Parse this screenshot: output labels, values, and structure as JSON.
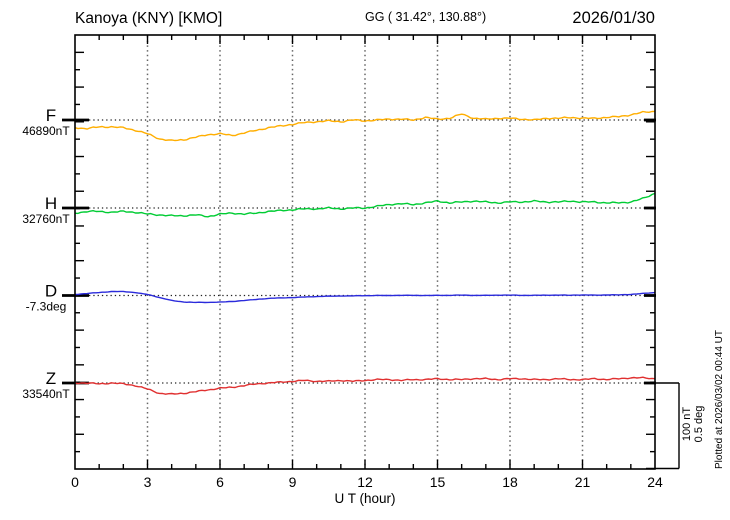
{
  "header": {
    "station_title": "Kanoya (KNY)  [KMO]",
    "coordinates": "GG ( 31.42°, 130.88°)",
    "date": "2026/01/30"
  },
  "x_axis": {
    "ticks": [
      "0",
      "3",
      "6",
      "9",
      "12",
      "15",
      "18",
      "21",
      "24"
    ],
    "label": "U T (hour)"
  },
  "components": [
    {
      "label": "F",
      "value_label": "46890nT",
      "color": "#FFAE00"
    },
    {
      "label": "H",
      "value_label": "32760nT",
      "color": "#00CC33"
    },
    {
      "label": "D",
      "value_label": "-7.3deg",
      "color": "#2B2BDB"
    },
    {
      "label": "Z",
      "value_label": "33540nT",
      "color": "#E03030"
    }
  ],
  "scale_bar": {
    "line1": "100 nT",
    "line2": "0.5 deg"
  },
  "plotted_at": "Plotted at 2026/03/02 00:44 UT",
  "chart_data": {
    "type": "line",
    "title": "Kanoya (KNY) [KMO] magnetogram, 2026/01/30",
    "xlabel": "U T (hour)",
    "x_range": [
      0,
      24
    ],
    "x_ticks": [
      0,
      3,
      6,
      9,
      12,
      15,
      18,
      21,
      24
    ],
    "x_step_hours": 0.5,
    "grid": "vertical dotted lines every 3 hours; dotted horizontal baseline per component",
    "legend_position": "left margin labels",
    "scale": {
      "nT_per_division": 100,
      "deg_per_division": 0.5
    },
    "series": [
      {
        "name": "F",
        "unit": "nT",
        "baseline": 46890,
        "color": "#FFAE00",
        "offsets": [
          -9,
          -10,
          -8,
          -8,
          -9,
          -12,
          -16,
          -22,
          -24,
          -23,
          -20,
          -17,
          -16,
          -18,
          -15,
          -12,
          -9,
          -7,
          -5,
          -3,
          -2,
          -1,
          -2,
          0,
          -1,
          0,
          1,
          1,
          0,
          3,
          1,
          2,
          7,
          2,
          1,
          2,
          2,
          1,
          0,
          2,
          2,
          3,
          2,
          2,
          3,
          4,
          6,
          9,
          10
        ]
      },
      {
        "name": "H",
        "unit": "nT",
        "baseline": 32760,
        "color": "#00CC33",
        "offsets": [
          -6,
          -4,
          -4,
          -5,
          -4,
          -5,
          -7,
          -8,
          -9,
          -9,
          -8,
          -10,
          -7,
          -6,
          -7,
          -6,
          -4,
          -3,
          -2,
          -1,
          -1,
          0,
          -1,
          0,
          0,
          2,
          4,
          5,
          4,
          6,
          8,
          6,
          7,
          8,
          7,
          6,
          7,
          7,
          8,
          7,
          7,
          8,
          7,
          7,
          6,
          6,
          7,
          11,
          17
        ]
      },
      {
        "name": "D",
        "unit": "deg",
        "baseline": -7.3,
        "color": "#2B2BDB",
        "offsets": [
          0.006,
          0.012,
          0.017,
          0.023,
          0.023,
          0.017,
          0.006,
          -0.012,
          -0.029,
          -0.038,
          -0.04,
          -0.04,
          -0.038,
          -0.035,
          -0.029,
          -0.023,
          -0.017,
          -0.014,
          -0.012,
          -0.009,
          -0.006,
          -0.004,
          -0.003,
          -0.002,
          -0.001,
          0,
          0,
          0.001,
          0.001,
          0,
          0.001,
          0.001,
          0.002,
          0.001,
          0.001,
          0.002,
          0.002,
          0.001,
          0.001,
          0.002,
          0.002,
          0.002,
          0.003,
          0.002,
          0.003,
          0.004,
          0.006,
          0.012,
          0.017
        ]
      },
      {
        "name": "Z",
        "unit": "nT",
        "baseline": 33540,
        "color": "#E03030",
        "offsets": [
          0,
          0,
          -1,
          0,
          -1,
          -3,
          -7,
          -12,
          -13,
          -12,
          -10,
          -8,
          -6,
          -5,
          -3,
          -1,
          0,
          1,
          2,
          3,
          2,
          2,
          3,
          2,
          3,
          4,
          4,
          3,
          4,
          4,
          5,
          4,
          4,
          5,
          5,
          4,
          5,
          5,
          4,
          4,
          5,
          4,
          4,
          5,
          4,
          5,
          6,
          6,
          5
        ]
      }
    ]
  }
}
